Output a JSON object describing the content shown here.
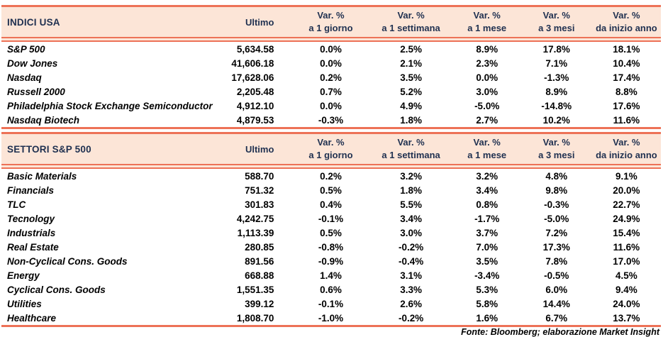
{
  "columns": {
    "ultimo": "Ultimo",
    "var_label": "Var. %",
    "periods": [
      "a 1 giorno",
      "a 1 settimana",
      "a 1 mese",
      "a 3 mesi",
      "da inizio anno"
    ]
  },
  "indices": {
    "title": "INDICI USA",
    "rows": [
      {
        "name": "S&P 500",
        "last": "5,634.58",
        "vars": [
          "0.0%",
          "2.5%",
          "8.9%",
          "17.8%",
          "18.1%"
        ]
      },
      {
        "name": "Dow Jones",
        "last": "41,606.18",
        "vars": [
          "0.0%",
          "2.1%",
          "2.3%",
          "7.1%",
          "10.4%"
        ]
      },
      {
        "name": "Nasdaq",
        "last": "17,628.06",
        "vars": [
          "0.2%",
          "3.5%",
          "0.0%",
          "-1.3%",
          "17.4%"
        ]
      },
      {
        "name": "Russell 2000",
        "last": "2,205.48",
        "vars": [
          "0.7%",
          "5.2%",
          "3.0%",
          "8.9%",
          "8.8%"
        ]
      },
      {
        "name": "Philadelphia Stock Exchange Semiconductor",
        "last": "4,912.10",
        "vars": [
          "0.0%",
          "4.9%",
          "-5.0%",
          "-14.8%",
          "17.6%"
        ]
      },
      {
        "name": "Nasdaq Biotech",
        "last": "4,879.53",
        "vars": [
          "-0.3%",
          "1.8%",
          "2.7%",
          "10.2%",
          "11.6%"
        ]
      }
    ]
  },
  "sectors": {
    "title": "SETTORI S&P 500",
    "rows": [
      {
        "name": "Basic Materials",
        "last": "588.70",
        "vars": [
          "0.2%",
          "3.2%",
          "3.2%",
          "4.8%",
          "9.1%"
        ]
      },
      {
        "name": "Financials",
        "last": "751.32",
        "vars": [
          "0.5%",
          "1.8%",
          "3.4%",
          "9.8%",
          "20.0%"
        ]
      },
      {
        "name": "TLC",
        "last": "301.83",
        "vars": [
          "0.4%",
          "5.5%",
          "0.8%",
          "-0.3%",
          "22.7%"
        ]
      },
      {
        "name": "Tecnology",
        "last": "4,242.75",
        "vars": [
          "-0.1%",
          "3.4%",
          "-1.7%",
          "-5.0%",
          "24.9%"
        ]
      },
      {
        "name": "Industrials",
        "last": "1,113.39",
        "vars": [
          "0.5%",
          "3.0%",
          "3.7%",
          "7.2%",
          "15.4%"
        ]
      },
      {
        "name": "Real Estate",
        "last": "280.85",
        "vars": [
          "-0.8%",
          "-0.2%",
          "7.0%",
          "17.3%",
          "11.6%"
        ]
      },
      {
        "name": "Non-Cyclical Cons. Goods",
        "last": "891.56",
        "vars": [
          "-0.9%",
          "-0.4%",
          "3.5%",
          "7.8%",
          "17.0%"
        ]
      },
      {
        "name": "Energy",
        "last": "668.88",
        "vars": [
          "1.4%",
          "3.1%",
          "-3.4%",
          "-0.5%",
          "4.5%"
        ]
      },
      {
        "name": "Cyclical Cons. Goods",
        "last": "1,551.35",
        "vars": [
          "0.6%",
          "3.3%",
          "5.3%",
          "6.0%",
          "9.4%"
        ]
      },
      {
        "name": "Utilities",
        "last": "399.12",
        "vars": [
          "-0.1%",
          "2.6%",
          "5.8%",
          "14.4%",
          "24.0%"
        ]
      },
      {
        "name": "Healthcare",
        "last": "1,808.70",
        "vars": [
          "-1.0%",
          "-0.2%",
          "1.6%",
          "6.7%",
          "13.7%"
        ]
      }
    ]
  },
  "footer": "Fonte: Bloomberg; elaborazione Market Insight",
  "colors": {
    "border": "#ed7257",
    "header_bg": "#fce5d7",
    "header_text": "#1f3050"
  }
}
